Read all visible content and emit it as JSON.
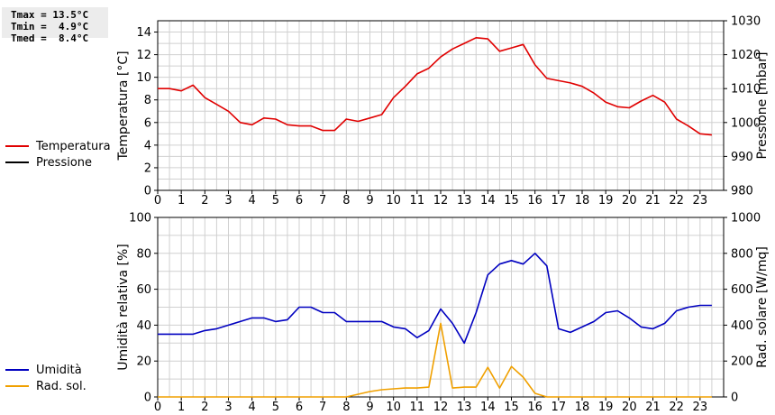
{
  "stats": {
    "tmax": "Tmax = 13.5°C",
    "tmin": "Tmin =  4.9°C",
    "tmed": "Tmed =  8.4°C"
  },
  "legend_top": [
    {
      "label": "Temperatura",
      "color": "#e00000"
    },
    {
      "label": "Pressione",
      "color": "#000000"
    }
  ],
  "legend_bottom": [
    {
      "label": "Umidità",
      "color": "#0000c0"
    },
    {
      "label": "Rad. sol.",
      "color": "#f0a000"
    }
  ],
  "colors": {
    "temperature": "#e00000",
    "pressure": "#000000",
    "humidity": "#0000c0",
    "radiation": "#f0a000",
    "grid": "#d0d0d0"
  },
  "chart_data": [
    {
      "type": "line",
      "ylabel": "Temperatura [°C]",
      "y2label": "Pressione [mbar]",
      "xlim": [
        0,
        24
      ],
      "ylim": [
        0,
        15
      ],
      "y2lim": [
        980,
        1030
      ],
      "x_ticks": [
        "0",
        "1",
        "2",
        "3",
        "4",
        "5",
        "6",
        "7",
        "8",
        "9",
        "10",
        "11",
        "12",
        "13",
        "14",
        "15",
        "16",
        "17",
        "18",
        "19",
        "20",
        "21",
        "22",
        "23"
      ],
      "y_ticks": [
        "0",
        "2",
        "4",
        "6",
        "8",
        "10",
        "12",
        "14"
      ],
      "y2_ticks": [
        "980",
        "990",
        "1000",
        "1010",
        "1020",
        "1030"
      ],
      "grid": true,
      "series": [
        {
          "name": "Temperatura",
          "color": "#e00000",
          "x": [
            0,
            0.5,
            1,
            1.5,
            2,
            2.5,
            3,
            3.5,
            4,
            4.5,
            5,
            5.5,
            6,
            6.5,
            7,
            7.5,
            8,
            8.5,
            9,
            9.5,
            10,
            10.5,
            11,
            11.5,
            12,
            12.5,
            13,
            13.5,
            14,
            14.5,
            15,
            15.5,
            16,
            16.5,
            17,
            17.5,
            18,
            18.5,
            19,
            19.5,
            20,
            20.5,
            21,
            21.5,
            22,
            22.5,
            23,
            23.5
          ],
          "values": [
            9.0,
            9.0,
            8.8,
            9.3,
            8.2,
            7.6,
            7.0,
            6.0,
            5.8,
            6.4,
            6.3,
            5.8,
            5.7,
            5.7,
            5.3,
            5.3,
            6.3,
            6.1,
            6.4,
            6.7,
            8.2,
            9.2,
            10.3,
            10.8,
            11.8,
            12.5,
            13.0,
            13.5,
            13.4,
            12.3,
            12.6,
            12.9,
            11.1,
            9.9,
            9.7,
            9.5,
            9.2,
            8.6,
            7.8,
            7.4,
            7.3,
            7.9,
            8.4,
            7.8,
            6.3,
            5.7,
            5.0,
            4.9
          ]
        },
        {
          "name": "Pressione",
          "color": "#000000",
          "values": []
        }
      ]
    },
    {
      "type": "line",
      "ylabel": "Umidità relativa [%]",
      "y2label": "Rad. solare [W/mq]",
      "xlim": [
        0,
        24
      ],
      "ylim": [
        0,
        100
      ],
      "y2lim": [
        0,
        1000
      ],
      "x_ticks": [
        "0",
        "1",
        "2",
        "3",
        "4",
        "5",
        "6",
        "7",
        "8",
        "9",
        "10",
        "11",
        "12",
        "13",
        "14",
        "15",
        "16",
        "17",
        "18",
        "19",
        "20",
        "21",
        "22",
        "23"
      ],
      "y_ticks": [
        "0",
        "20",
        "40",
        "60",
        "80",
        "100"
      ],
      "y2_ticks": [
        "0",
        "200",
        "400",
        "600",
        "800",
        "1000"
      ],
      "grid": true,
      "series": [
        {
          "name": "Umidità",
          "color": "#0000c0",
          "x": [
            0,
            0.5,
            1,
            1.5,
            2,
            2.5,
            3,
            3.5,
            4,
            4.5,
            5,
            5.5,
            6,
            6.5,
            7,
            7.5,
            8,
            8.5,
            9,
            9.5,
            10,
            10.5,
            11,
            11.5,
            12,
            12.5,
            13,
            13.5,
            14,
            14.5,
            15,
            15.5,
            16,
            16.5,
            17,
            17.5,
            18,
            18.5,
            19,
            19.5,
            20,
            20.5,
            21,
            21.5,
            22,
            22.5,
            23,
            23.5
          ],
          "values": [
            35,
            35,
            35,
            35,
            37,
            38,
            40,
            42,
            44,
            44,
            42,
            43,
            50,
            50,
            47,
            47,
            42,
            42,
            42,
            42,
            39,
            38,
            33,
            37,
            49,
            41,
            30,
            47,
            68,
            74,
            76,
            74,
            80,
            73,
            38,
            36,
            39,
            42,
            47,
            48,
            44,
            39,
            38,
            41,
            48,
            50,
            51,
            51
          ]
        },
        {
          "name": "Rad. sol.",
          "color": "#f0a000",
          "axis": "right",
          "x": [
            0,
            1,
            2,
            3,
            4,
            5,
            6,
            7,
            8,
            8.5,
            9,
            9.5,
            10,
            10.5,
            11,
            11.5,
            12,
            12.5,
            13,
            13.5,
            14,
            14.5,
            15,
            15.5,
            16,
            16.5,
            17,
            18,
            19,
            20,
            21,
            22,
            23,
            23.5
          ],
          "values": [
            0,
            0,
            0,
            0,
            0,
            0,
            0,
            0,
            0,
            15,
            30,
            40,
            45,
            50,
            50,
            55,
            410,
            50,
            55,
            55,
            165,
            50,
            170,
            110,
            20,
            0,
            0,
            0,
            0,
            0,
            0,
            0,
            0,
            0
          ]
        }
      ]
    }
  ]
}
